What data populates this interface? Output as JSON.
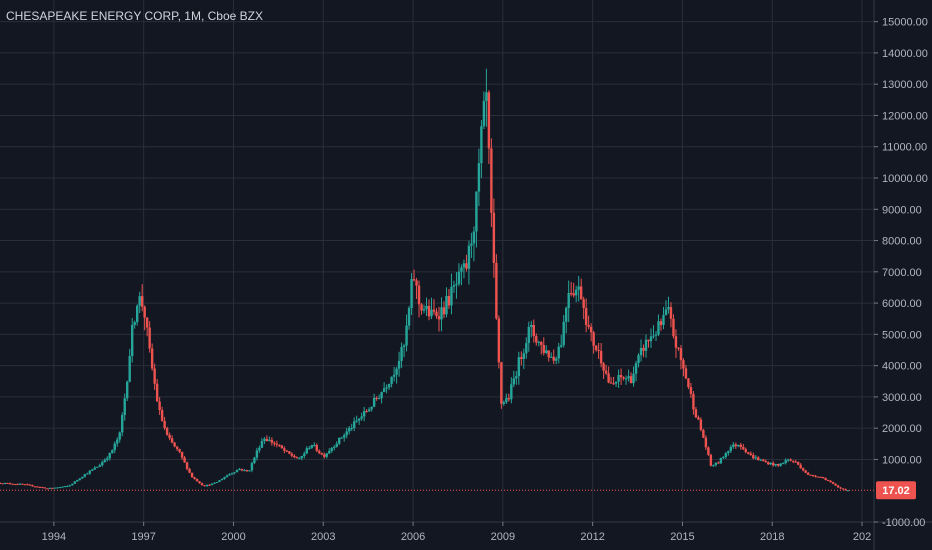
{
  "chart_data": {
    "type": "candlestick",
    "title": "CHESAPEAKE ENERGY CORP, 1M, Cboe BZX",
    "ylim": [
      -1000,
      15500
    ],
    "xlim": [
      1992.2,
      2021.4
    ],
    "y_ticks": [
      "-1000.00",
      "1000.00",
      "2000.00",
      "3000.00",
      "4000.00",
      "5000.00",
      "6000.00",
      "7000.00",
      "8000.00",
      "9000.00",
      "10000.00",
      "11000.00",
      "12000.00",
      "13000.00",
      "14000.00",
      "15000.00"
    ],
    "x_ticks": [
      "1994",
      "1997",
      "2000",
      "2003",
      "2006",
      "2009",
      "2012",
      "2015",
      "2018",
      "202"
    ],
    "last_price": "17.02",
    "grid": true,
    "colors": {
      "up": "#26a69a",
      "down": "#ef5350",
      "background": "#131722",
      "grid": "#2a2e39",
      "last_price": "#ef5350"
    },
    "path": [
      [
        1992.2,
        250
      ],
      [
        1993.0,
        200
      ],
      [
        1993.8,
        70
      ],
      [
        1994.5,
        150
      ],
      [
        1995.0,
        500
      ],
      [
        1995.5,
        800
      ],
      [
        1995.9,
        1200
      ],
      [
        1996.2,
        1800
      ],
      [
        1996.4,
        3200
      ],
      [
        1996.6,
        5000
      ],
      [
        1996.8,
        6200
      ],
      [
        1997.0,
        5900
      ],
      [
        1997.2,
        4400
      ],
      [
        1997.5,
        2600
      ],
      [
        1997.8,
        1700
      ],
      [
        1998.2,
        1200
      ],
      [
        1998.6,
        450
      ],
      [
        1999.0,
        150
      ],
      [
        1999.4,
        250
      ],
      [
        1999.8,
        500
      ],
      [
        2000.2,
        700
      ],
      [
        2000.5,
        600
      ],
      [
        2000.8,
        1300
      ],
      [
        2001.0,
        1700
      ],
      [
        2001.4,
        1500
      ],
      [
        2001.8,
        1200
      ],
      [
        2002.2,
        1000
      ],
      [
        2002.6,
        1500
      ],
      [
        2003.0,
        1100
      ],
      [
        2003.5,
        1600
      ],
      [
        2004.0,
        2100
      ],
      [
        2004.5,
        2600
      ],
      [
        2004.9,
        3100
      ],
      [
        2005.3,
        3700
      ],
      [
        2005.7,
        4600
      ],
      [
        2005.9,
        6000
      ],
      [
        2006.0,
        7000
      ],
      [
        2006.2,
        6000
      ],
      [
        2006.6,
        5600
      ],
      [
        2007.0,
        5800
      ],
      [
        2007.4,
        6500
      ],
      [
        2007.8,
        7200
      ],
      [
        2008.1,
        9000
      ],
      [
        2008.3,
        11500
      ],
      [
        2008.45,
        12500
      ],
      [
        2008.6,
        9000
      ],
      [
        2008.8,
        5000
      ],
      [
        2008.95,
        2800
      ],
      [
        2009.2,
        3000
      ],
      [
        2009.5,
        4000
      ],
      [
        2009.9,
        5200
      ],
      [
        2010.3,
        4600
      ],
      [
        2010.7,
        4200
      ],
      [
        2010.95,
        4800
      ],
      [
        2011.2,
        6500
      ],
      [
        2011.6,
        6400
      ],
      [
        2011.9,
        5000
      ],
      [
        2012.3,
        4200
      ],
      [
        2012.6,
        3300
      ],
      [
        2012.9,
        3600
      ],
      [
        2013.3,
        3600
      ],
      [
        2013.7,
        4600
      ],
      [
        2014.0,
        5000
      ],
      [
        2014.3,
        5300
      ],
      [
        2014.5,
        5800
      ],
      [
        2014.8,
        4600
      ],
      [
        2015.1,
        3700
      ],
      [
        2015.4,
        2600
      ],
      [
        2015.7,
        1700
      ],
      [
        2015.95,
        800
      ],
      [
        2016.2,
        900
      ],
      [
        2016.6,
        1400
      ],
      [
        2016.9,
        1500
      ],
      [
        2017.3,
        1100
      ],
      [
        2017.8,
        900
      ],
      [
        2018.2,
        800
      ],
      [
        2018.5,
        1000
      ],
      [
        2018.8,
        900
      ],
      [
        2019.2,
        500
      ],
      [
        2019.6,
        450
      ],
      [
        2019.9,
        300
      ],
      [
        2020.2,
        100
      ],
      [
        2020.4,
        40
      ],
      [
        2020.5,
        17
      ]
    ]
  }
}
